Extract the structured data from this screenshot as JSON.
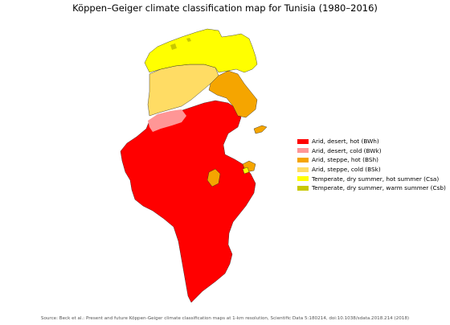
{
  "title": "Köppen–Geiger climate classification map for Tunisia (1980–2016)",
  "legend": [
    {
      "label": "Arid, desert, hot (BWh)",
      "color": "#ff0000"
    },
    {
      "label": "Arid, desert, cold (BWk)",
      "color": "#ff9696"
    },
    {
      "label": "Arid, steppe, hot (BSh)",
      "color": "#f5a500"
    },
    {
      "label": "Arid, steppe, cold (BSk)",
      "color": "#ffdc64"
    },
    {
      "label": "Temperate, dry summer, hot summer (Csa)",
      "color": "#ffff00"
    },
    {
      "label": "Temperate, dry summer, warm summer (Csb)",
      "color": "#c8c800"
    }
  ],
  "source": "Source: Beck et al.: Present and future Köppen-Geiger climate classification maps at 1-km resolution, Scientific Data 5:180214, doi:10.1038/sdata.2018.214 (2018)"
}
